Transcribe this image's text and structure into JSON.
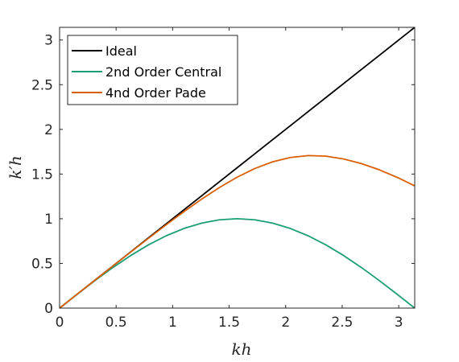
{
  "chart_data": {
    "type": "line",
    "xlabel": "kh",
    "ylabel": "k′h",
    "xlim": [
      0,
      3.14159
    ],
    "ylim": [
      0,
      3.14159
    ],
    "xticks": [
      "0",
      "0.5",
      "1",
      "1.5",
      "2",
      "2.5",
      "3"
    ],
    "yticks": [
      "0",
      "0.5",
      "1",
      "1.5",
      "2",
      "2.5",
      "3"
    ],
    "grid": false,
    "legend_position": "top-left",
    "x": [
      0,
      0.15708,
      0.31416,
      0.47124,
      0.62832,
      0.7854,
      0.94248,
      1.09956,
      1.25664,
      1.41372,
      1.5708,
      1.72788,
      1.88496,
      2.04204,
      2.19911,
      2.35619,
      2.51327,
      2.67035,
      2.82743,
      2.98451,
      3.14159
    ],
    "series": [
      {
        "name": "Ideal",
        "color": "#000000",
        "values": [
          0,
          0.15708,
          0.31416,
          0.47124,
          0.62832,
          0.7854,
          0.94248,
          1.09956,
          1.25664,
          1.41372,
          1.5708,
          1.72788,
          1.88496,
          2.04204,
          2.19911,
          2.35619,
          2.51327,
          2.67035,
          2.82743,
          2.98451,
          3.14159
        ]
      },
      {
        "name": "2nd Order Central",
        "color": "#1b9e77",
        "values": [
          0,
          0.15643,
          0.30902,
          0.45399,
          0.58779,
          0.70711,
          0.80902,
          0.89101,
          0.95106,
          0.98769,
          1.0,
          0.98769,
          0.95106,
          0.89101,
          0.80902,
          0.70711,
          0.58779,
          0.45399,
          0.30902,
          0.15643,
          0
        ]
      },
      {
        "name": "4nd Order Pade",
        "color": "#d95f02",
        "values": [
          0,
          0.15707,
          0.31401,
          0.47057,
          0.62633,
          0.78057,
          0.93211,
          1.07919,
          1.21931,
          1.34923,
          1.46503,
          1.56246,
          1.63728,
          1.68597,
          1.70665,
          1.70003,
          1.669,
          1.6172,
          1.54805,
          1.46402,
          1.36794
        ]
      }
    ]
  }
}
